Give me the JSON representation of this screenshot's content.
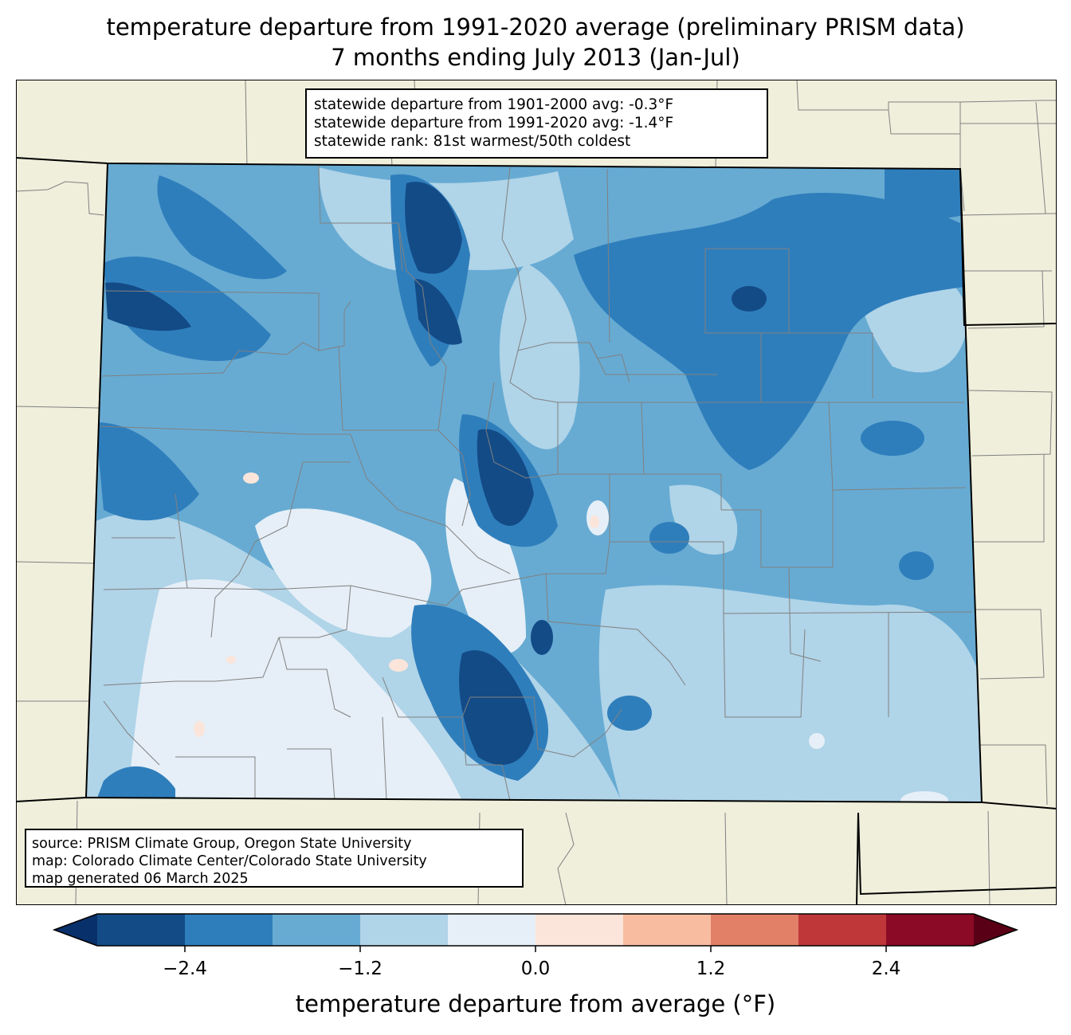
{
  "title": {
    "line1": "temperature departure from 1991-2020 average (preliminary PRISM data)",
    "line2": "7 months ending July 2013 (Jan-Jul)"
  },
  "stats": {
    "line1": "statewide departure from 1901-2000 avg: -0.3°F",
    "line2": "statewide departure from 1991-2020 avg: -1.4°F",
    "line3": "statewide rank: 81st warmest/50th coldest"
  },
  "source": {
    "line1": "source: PRISM Climate Group, Oregon State University",
    "line2": "map: Colorado Climate Center/Colorado State University",
    "line3": "map generated 06 March 2025"
  },
  "colorbar": {
    "title": "temperature departure from average (°F)",
    "ticks": [
      "−2.4",
      "−1.2",
      "0.0",
      "1.2",
      "2.4"
    ],
    "tick_values": [
      -2.4,
      -1.2,
      0.0,
      1.2,
      2.4
    ],
    "bounds": [
      -3.0,
      -2.4,
      -1.8,
      -1.2,
      -0.6,
      0.0,
      0.6,
      1.2,
      1.8,
      2.4,
      3.0
    ],
    "colors": [
      "#08306b",
      "#134b87",
      "#2f7ebc",
      "#67abd3",
      "#b0d4e8",
      "#e6eff7",
      "#fbe5da",
      "#f8bca1",
      "#e17f67",
      "#c0373a",
      "#8b0a25",
      "#5a0016"
    ]
  },
  "map_colors": {
    "background": "#efefdc",
    "border": "#000000",
    "county_lines": "#808080"
  }
}
